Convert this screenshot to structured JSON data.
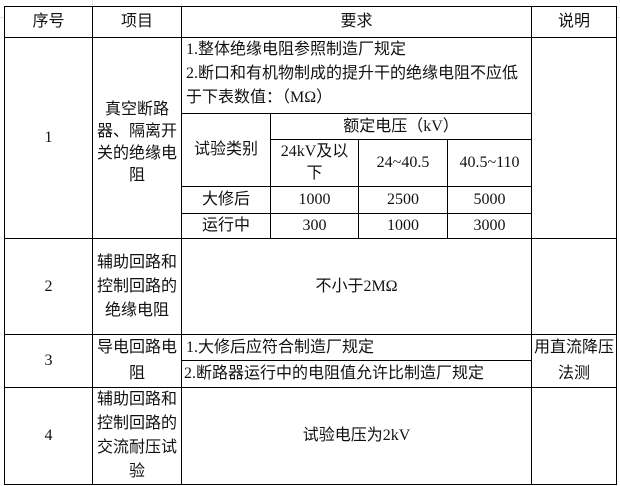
{
  "headers": {
    "no": "序号",
    "item": "项目",
    "req": "要求",
    "note": "说明"
  },
  "rows": [
    {
      "no": "1",
      "item": "真空断路器、隔离开关的绝缘电阻",
      "req_text": [
        "1.整体绝缘电阻参照制造厂规定",
        "2.断口和有机物制成的提升干的绝缘电阻不应低于下表数值：（MΩ）"
      ],
      "sub_table": {
        "type_label": "试验类别",
        "voltage_label": "额定电压（kV）",
        "voltages": [
          "24kV及以下",
          "24~40.5",
          "40.5~110"
        ],
        "rows": [
          {
            "label": "大修后",
            "values": [
              "1000",
              "2500",
              "5000"
            ]
          },
          {
            "label": "运行中",
            "values": [
              "300",
              "1000",
              "3000"
            ]
          }
        ]
      },
      "note": ""
    },
    {
      "no": "2",
      "item": "辅助回路和控制回路的绝缘电阻",
      "req": "不小于2MΩ",
      "note": ""
    },
    {
      "no": "3",
      "item": "导电回路电阻",
      "req_lines": [
        "1.大修后应符合制造厂规定",
        "2.断路器运行中的电阻值允许比制造厂规定"
      ],
      "note": "用直流降压法测"
    },
    {
      "no": "4",
      "item": "辅助回路和控制回路的交流耐压试验",
      "req": "试验电压为2kV",
      "note": ""
    }
  ]
}
